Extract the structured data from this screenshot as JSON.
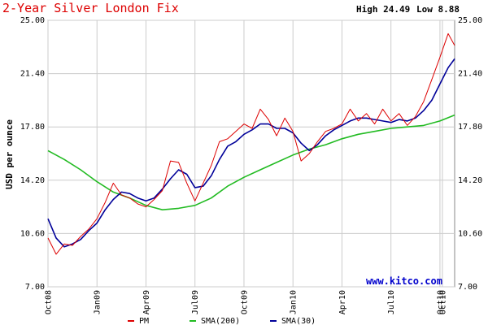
{
  "chart_data": {
    "type": "line",
    "title": "2-Year Silver London Fix",
    "high_label": "High 24.49",
    "low_label": "Low 8.88",
    "ylabel": "USD per ounce",
    "watermark": "www.kitco.com",
    "ylim": [
      7.0,
      25.0
    ],
    "y_ticks": [
      "25.00",
      "21.40",
      "17.80",
      "14.20",
      "10.60",
      "7.00"
    ],
    "y_tick_values": [
      25.0,
      21.4,
      17.8,
      14.2,
      10.6,
      7.0
    ],
    "x_months_total": 24.9,
    "x_ticks": [
      {
        "label": "Oct08",
        "month": 0
      },
      {
        "label": "Jan09",
        "month": 3
      },
      {
        "label": "Apr09",
        "month": 6
      },
      {
        "label": "Jul09",
        "month": 9
      },
      {
        "label": "Oct09",
        "month": 12
      },
      {
        "label": "Jan10",
        "month": 15
      },
      {
        "label": "Apr10",
        "month": 18
      },
      {
        "label": "Jul10",
        "month": 21
      },
      {
        "label": "Oct10",
        "month": 24
      },
      {
        "label": "Oct10",
        "month": 24.15
      }
    ],
    "grid": true,
    "legend_position": "bottom",
    "colors": {
      "pm": "#dd0000",
      "sma200": "#22bb22",
      "sma30": "#000099",
      "grid": "#cccccc"
    },
    "series": [
      {
        "name": "PM",
        "color": "#dd0000",
        "x": [
          0,
          0.5,
          1,
          1.5,
          2,
          2.5,
          3,
          3.5,
          4,
          4.5,
          5,
          5.5,
          6,
          6.5,
          7,
          7.5,
          8,
          8.5,
          9,
          9.5,
          10,
          10.5,
          11,
          11.5,
          12,
          12.5,
          13,
          13.5,
          14,
          14.5,
          15,
          15.5,
          16,
          16.5,
          17,
          17.5,
          18,
          18.5,
          19,
          19.5,
          20,
          20.5,
          21,
          21.5,
          22,
          22.5,
          23,
          23.5,
          24,
          24.5,
          24.9
        ],
        "y": [
          10.3,
          9.2,
          9.9,
          9.8,
          10.4,
          10.9,
          11.6,
          12.7,
          14.0,
          13.2,
          13.0,
          12.6,
          12.4,
          12.9,
          13.5,
          15.5,
          15.4,
          14.0,
          12.8,
          14.0,
          15.2,
          16.8,
          17.0,
          17.5,
          18.0,
          17.7,
          19.0,
          18.3,
          17.2,
          18.4,
          17.5,
          15.5,
          16.0,
          16.8,
          17.5,
          17.7,
          18.0,
          19.0,
          18.2,
          18.7,
          18.0,
          19.0,
          18.2,
          18.7,
          17.9,
          18.5,
          19.5,
          21.0,
          22.5,
          24.1,
          23.3
        ]
      },
      {
        "name": "SMA(200)",
        "color": "#22bb22",
        "x": [
          0,
          1,
          2,
          3,
          4,
          5,
          6,
          7,
          8,
          9,
          10,
          11,
          12,
          13,
          14,
          15,
          16,
          17,
          18,
          19,
          20,
          21,
          22,
          23,
          24,
          24.9
        ],
        "y": [
          16.2,
          15.6,
          14.9,
          14.1,
          13.4,
          13.0,
          12.5,
          12.2,
          12.3,
          12.5,
          13.0,
          13.8,
          14.4,
          14.9,
          15.4,
          15.9,
          16.3,
          16.6,
          17.0,
          17.3,
          17.5,
          17.7,
          17.8,
          17.9,
          18.2,
          18.6
        ]
      },
      {
        "name": "SMA(30)",
        "color": "#000099",
        "x": [
          0,
          0.5,
          1,
          1.5,
          2,
          2.5,
          3,
          3.5,
          4,
          4.5,
          5,
          5.5,
          6,
          6.5,
          7,
          7.5,
          8,
          8.5,
          9,
          9.5,
          10,
          10.5,
          11,
          11.5,
          12,
          12.5,
          13,
          13.5,
          14,
          14.5,
          15,
          15.5,
          16,
          16.5,
          17,
          17.5,
          18,
          18.5,
          19,
          19.5,
          20,
          20.5,
          21,
          21.5,
          22,
          22.5,
          23,
          23.5,
          24,
          24.5,
          24.9
        ],
        "y": [
          11.6,
          10.3,
          9.7,
          9.9,
          10.2,
          10.8,
          11.3,
          12.2,
          12.9,
          13.4,
          13.3,
          13.0,
          12.8,
          13.0,
          13.6,
          14.3,
          14.9,
          14.6,
          13.7,
          13.8,
          14.5,
          15.6,
          16.5,
          16.8,
          17.3,
          17.6,
          18.0,
          18.0,
          17.7,
          17.7,
          17.4,
          16.7,
          16.2,
          16.6,
          17.2,
          17.6,
          17.9,
          18.2,
          18.4,
          18.4,
          18.3,
          18.2,
          18.1,
          18.3,
          18.2,
          18.4,
          18.9,
          19.6,
          20.7,
          21.8,
          22.4
        ]
      }
    ]
  }
}
